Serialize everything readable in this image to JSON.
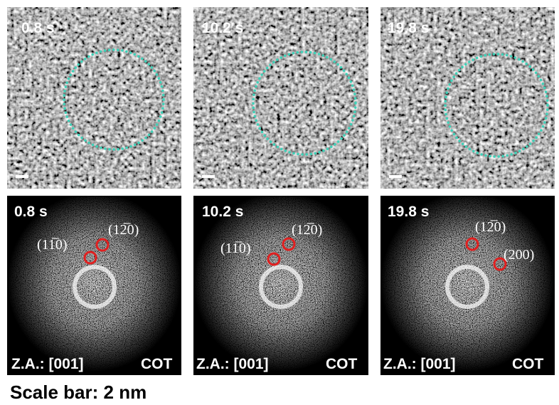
{
  "top_panels": [
    {
      "time": "0.8 s"
    },
    {
      "time": "10.2 s"
    },
    {
      "time": "19.8 s"
    }
  ],
  "bottom_panels": [
    {
      "time": "0.8 s",
      "spots": [
        "(12̅0)",
        "(11̅0)"
      ],
      "zone_axis": "Z.A.: [001]",
      "method": "COT"
    },
    {
      "time": "10.2 s",
      "spots": [
        "(12̅0)",
        "(11̅0)"
      ],
      "zone_axis": "Z.A.: [001]",
      "method": "COT"
    },
    {
      "time": "19.8 s",
      "spots": [
        "(12̅0)",
        "(200)"
      ],
      "zone_axis": "Z.A.: [001]",
      "method": "COT"
    }
  ],
  "caption": "Scale bar: 2 nm"
}
